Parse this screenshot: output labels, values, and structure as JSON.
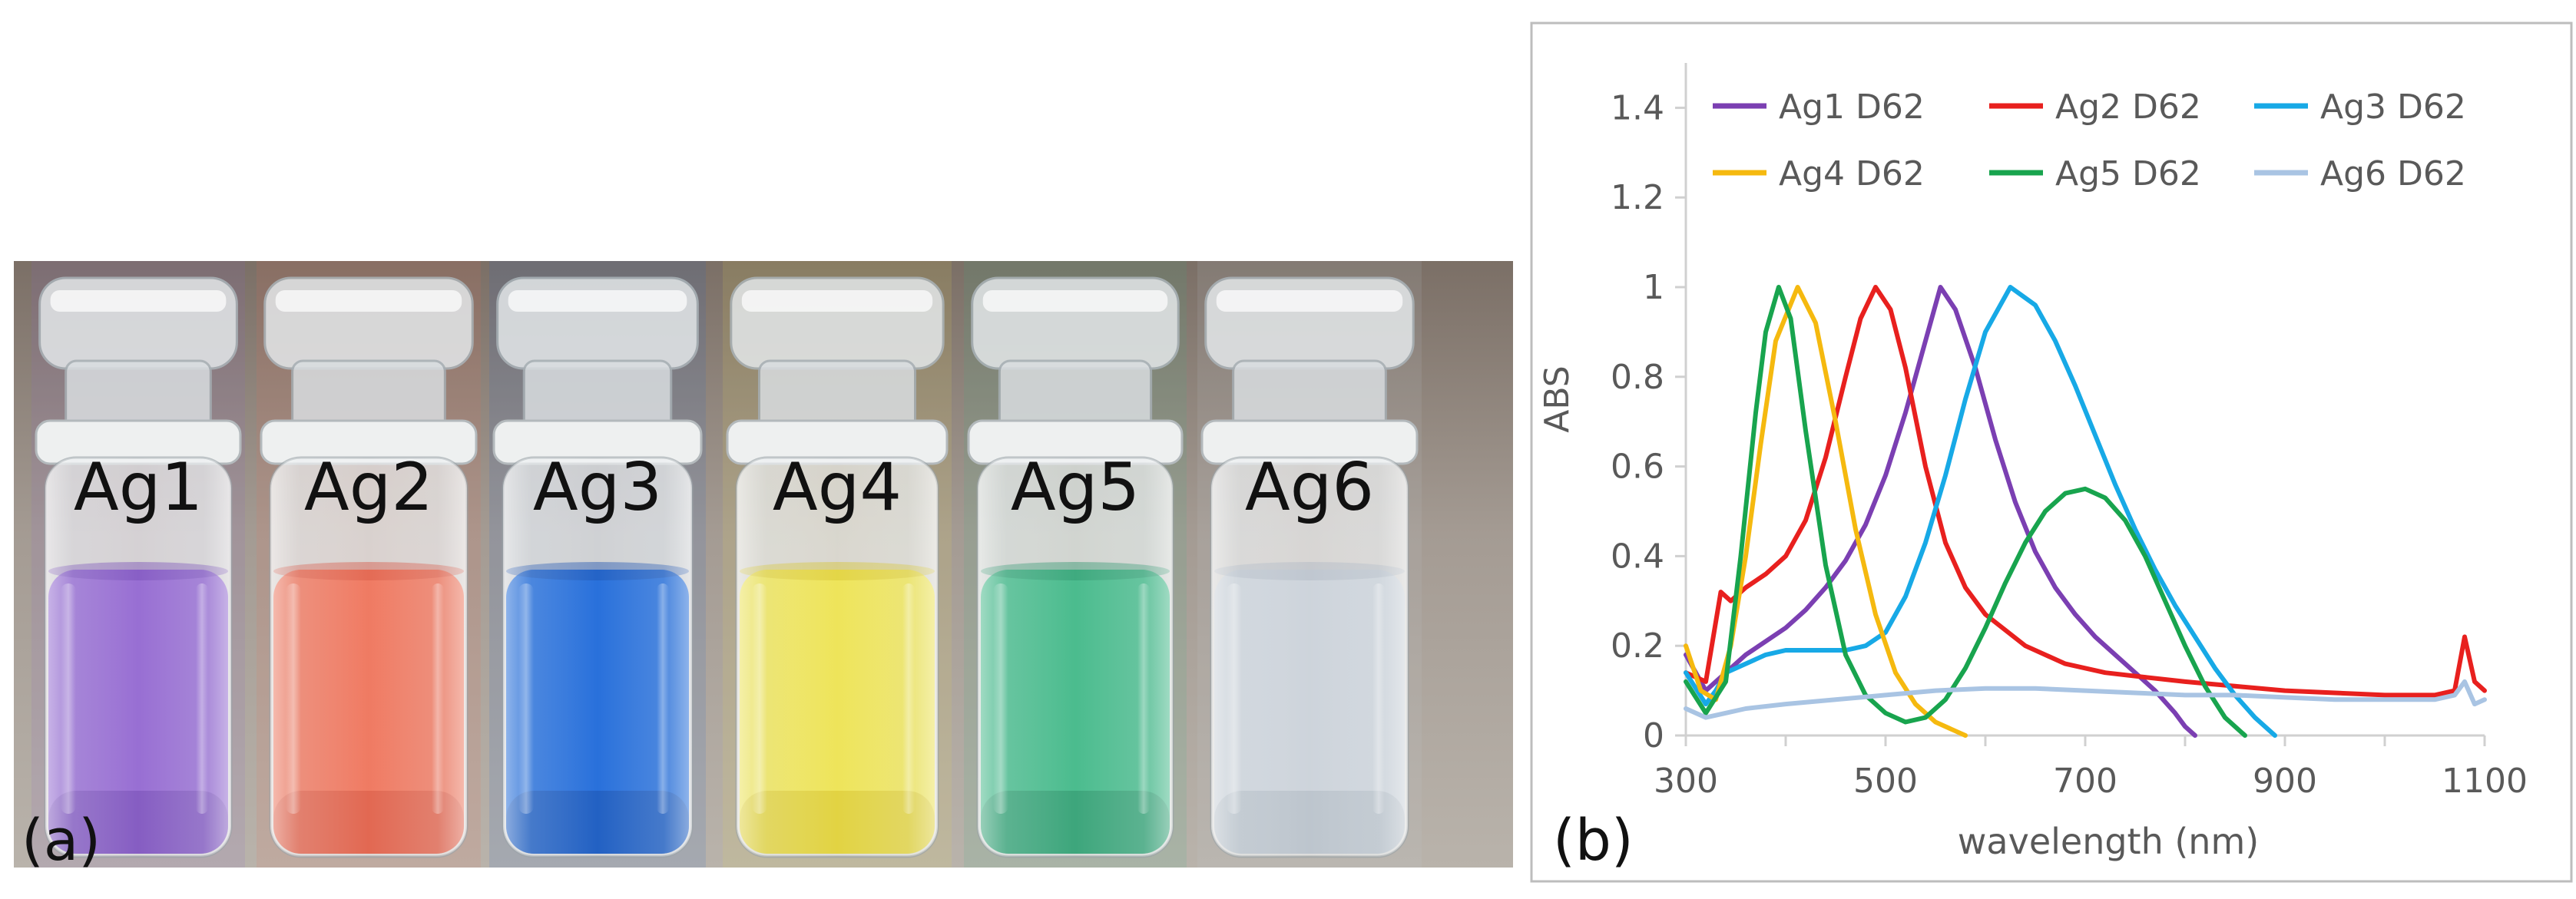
{
  "panel_a": {
    "tag": "(a)",
    "vials": [
      {
        "label": "Ag1",
        "color": "#8f62cf",
        "deep": "#6b3faf"
      },
      {
        "label": "Ag2",
        "color": "#ee6f55",
        "deep": "#d34a35"
      },
      {
        "label": "Ag3",
        "color": "#1664d8",
        "deep": "#0b45a9"
      },
      {
        "label": "Ag4",
        "color": "#ede24c",
        "deep": "#d3bf1e"
      },
      {
        "label": "Ag5",
        "color": "#3bb684",
        "deep": "#208b61"
      },
      {
        "label": "Ag6",
        "color": "#c9d0d8",
        "deep": "#a8b2be"
      }
    ]
  },
  "panel_b": {
    "tag": "(b)",
    "chart_data": {
      "type": "line",
      "xlabel": "wavelength (nm)",
      "ylabel": "ABS",
      "xlim": [
        300,
        1100
      ],
      "ylim": [
        0,
        1.5
      ],
      "xticks": [
        300,
        500,
        700,
        900,
        1100
      ],
      "yticks": [
        0,
        0.2,
        0.4,
        0.6,
        0.8,
        1,
        1.2,
        1.4
      ],
      "grid": false,
      "legend_position": "top",
      "series": [
        {
          "name": "Ag1 D62",
          "color": "#7b3fb2",
          "peak": 555,
          "x": [
            300,
            320,
            340,
            360,
            380,
            400,
            420,
            440,
            460,
            480,
            500,
            520,
            540,
            555,
            570,
            590,
            610,
            630,
            650,
            670,
            690,
            710,
            730,
            750,
            770,
            790,
            800,
            810
          ],
          "y": [
            0.18,
            0.1,
            0.14,
            0.18,
            0.21,
            0.24,
            0.28,
            0.33,
            0.39,
            0.47,
            0.58,
            0.72,
            0.88,
            1.0,
            0.95,
            0.82,
            0.66,
            0.52,
            0.41,
            0.33,
            0.27,
            0.22,
            0.18,
            0.14,
            0.1,
            0.05,
            0.02,
            0.0
          ]
        },
        {
          "name": "Ag2 D62",
          "color": "#e8201e",
          "peak": 490,
          "x": [
            300,
            320,
            335,
            345,
            360,
            380,
            400,
            420,
            440,
            460,
            475,
            490,
            505,
            520,
            540,
            560,
            580,
            600,
            640,
            680,
            720,
            760,
            800,
            850,
            900,
            950,
            1000,
            1050,
            1070,
            1080,
            1090,
            1100
          ],
          "y": [
            0.14,
            0.12,
            0.32,
            0.3,
            0.33,
            0.36,
            0.4,
            0.48,
            0.62,
            0.8,
            0.93,
            1.0,
            0.95,
            0.82,
            0.6,
            0.43,
            0.33,
            0.27,
            0.2,
            0.16,
            0.14,
            0.13,
            0.12,
            0.11,
            0.1,
            0.095,
            0.09,
            0.09,
            0.1,
            0.22,
            0.12,
            0.1
          ]
        },
        {
          "name": "Ag3 D62",
          "color": "#17a9e6",
          "peak": 625,
          "x": [
            300,
            320,
            330,
            340,
            360,
            380,
            400,
            420,
            440,
            460,
            480,
            500,
            520,
            540,
            560,
            580,
            600,
            625,
            650,
            670,
            690,
            710,
            730,
            750,
            770,
            790,
            810,
            830,
            850,
            870,
            890
          ],
          "y": [
            0.14,
            0.07,
            0.1,
            0.14,
            0.16,
            0.18,
            0.19,
            0.19,
            0.19,
            0.19,
            0.2,
            0.23,
            0.31,
            0.43,
            0.58,
            0.75,
            0.9,
            1.0,
            0.96,
            0.88,
            0.78,
            0.67,
            0.56,
            0.46,
            0.37,
            0.29,
            0.22,
            0.15,
            0.09,
            0.04,
            0.0
          ]
        },
        {
          "name": "Ag4 D62",
          "color": "#f5b90f",
          "peak": 412,
          "x": [
            300,
            315,
            330,
            345,
            360,
            375,
            390,
            412,
            430,
            450,
            470,
            490,
            510,
            530,
            550,
            570,
            580
          ],
          "y": [
            0.2,
            0.1,
            0.08,
            0.2,
            0.4,
            0.65,
            0.88,
            1.0,
            0.92,
            0.7,
            0.46,
            0.27,
            0.14,
            0.07,
            0.03,
            0.01,
            0.0
          ]
        },
        {
          "name": "Ag5 D62",
          "color": "#18a44e",
          "peak": 393,
          "x": [
            300,
            320,
            340,
            355,
            370,
            380,
            393,
            405,
            420,
            440,
            460,
            480,
            500,
            520,
            540,
            560,
            580,
            600,
            620,
            640,
            660,
            680,
            700,
            720,
            740,
            760,
            780,
            800,
            820,
            840,
            860
          ],
          "y": [
            0.12,
            0.05,
            0.12,
            0.4,
            0.72,
            0.9,
            1.0,
            0.93,
            0.68,
            0.38,
            0.18,
            0.09,
            0.05,
            0.03,
            0.04,
            0.08,
            0.15,
            0.24,
            0.34,
            0.43,
            0.5,
            0.54,
            0.55,
            0.53,
            0.48,
            0.4,
            0.3,
            0.2,
            0.11,
            0.04,
            0.0
          ]
        },
        {
          "name": "Ag6 D62",
          "color": "#a9c4e3",
          "peak": 620,
          "x": [
            300,
            320,
            340,
            360,
            400,
            450,
            500,
            550,
            600,
            650,
            700,
            750,
            800,
            850,
            900,
            950,
            1000,
            1050,
            1070,
            1080,
            1090,
            1100
          ],
          "y": [
            0.06,
            0.04,
            0.05,
            0.06,
            0.07,
            0.08,
            0.09,
            0.1,
            0.105,
            0.105,
            0.1,
            0.095,
            0.09,
            0.09,
            0.085,
            0.08,
            0.08,
            0.08,
            0.09,
            0.12,
            0.07,
            0.08
          ]
        }
      ]
    }
  }
}
